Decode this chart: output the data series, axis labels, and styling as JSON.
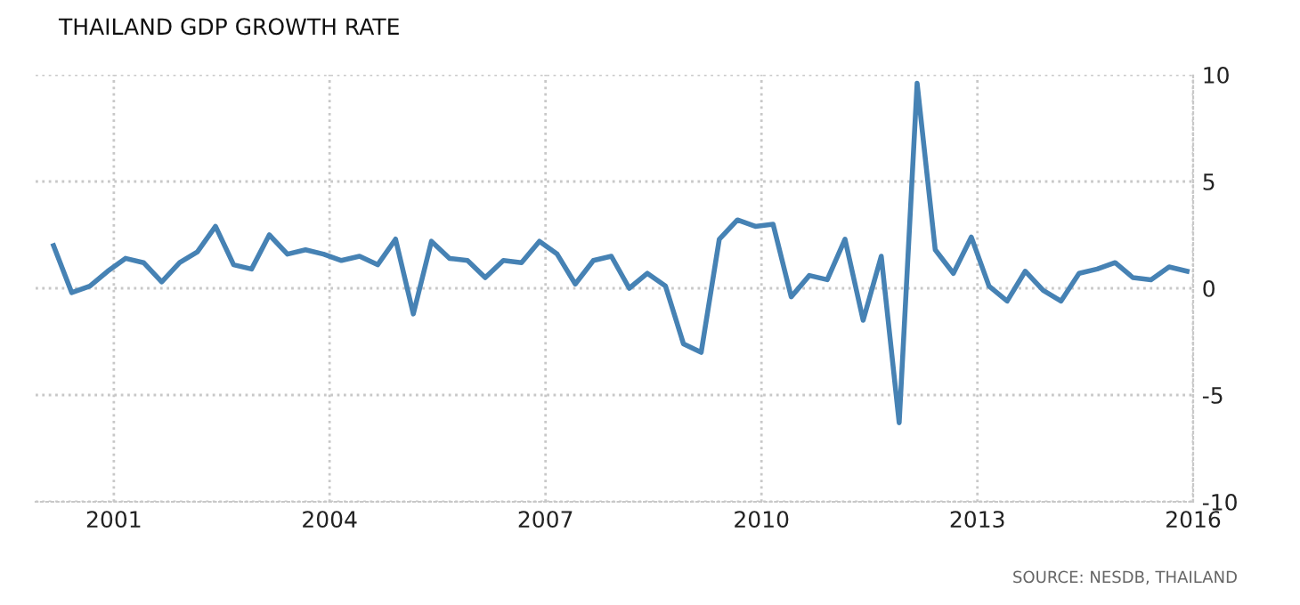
{
  "chart_data": {
    "type": "line",
    "title": "THAILAND GDP GROWTH RATE",
    "x": [
      "2000-03",
      "2000-06",
      "2000-09",
      "2000-12",
      "2001-03",
      "2001-06",
      "2001-09",
      "2001-12",
      "2002-03",
      "2002-06",
      "2002-09",
      "2002-12",
      "2003-03",
      "2003-06",
      "2003-09",
      "2003-12",
      "2004-03",
      "2004-06",
      "2004-09",
      "2004-12",
      "2005-03",
      "2005-06",
      "2005-09",
      "2005-12",
      "2006-03",
      "2006-06",
      "2006-09",
      "2006-12",
      "2007-03",
      "2007-06",
      "2007-09",
      "2007-12",
      "2008-03",
      "2008-06",
      "2008-09",
      "2008-12",
      "2009-03",
      "2009-06",
      "2009-09",
      "2009-12",
      "2010-03",
      "2010-06",
      "2010-09",
      "2010-12",
      "2011-03",
      "2011-06",
      "2011-09",
      "2011-12",
      "2012-03",
      "2012-06",
      "2012-09",
      "2012-12",
      "2013-03",
      "2013-06",
      "2013-09",
      "2013-12",
      "2014-03",
      "2014-06",
      "2014-09",
      "2014-12",
      "2015-03",
      "2015-06",
      "2015-09",
      "2015-12"
    ],
    "series": [
      {
        "color": "#4682b4",
        "values": [
          2.0,
          -0.2,
          0.1,
          0.8,
          1.4,
          1.2,
          0.3,
          1.2,
          1.7,
          2.9,
          1.1,
          0.9,
          2.5,
          1.6,
          1.8,
          1.6,
          1.3,
          1.5,
          1.1,
          2.3,
          -1.2,
          2.2,
          1.4,
          1.3,
          0.5,
          1.3,
          1.2,
          2.2,
          1.6,
          0.2,
          1.3,
          1.5,
          0.0,
          0.7,
          0.1,
          -2.6,
          -3.0,
          2.3,
          3.2,
          2.9,
          3.0,
          -0.4,
          0.6,
          0.4,
          2.3,
          -1.5,
          1.5,
          -6.3,
          9.6,
          1.8,
          0.7,
          2.4,
          0.1,
          -0.6,
          0.8,
          -0.1,
          -0.6,
          0.7,
          0.9,
          1.2,
          0.5,
          0.4,
          1.0,
          0.8
        ]
      }
    ],
    "xlim": [
      "1999-12",
      "2016-01"
    ],
    "xticks": [
      "2001",
      "2004",
      "2007",
      "2010",
      "2013",
      "2016"
    ],
    "ylim": [
      -10,
      10
    ],
    "yticks": [
      -10,
      -5,
      0,
      5,
      10
    ],
    "grid": true,
    "annotations": [
      "SOURCE: NESDB, THAILAND"
    ]
  }
}
